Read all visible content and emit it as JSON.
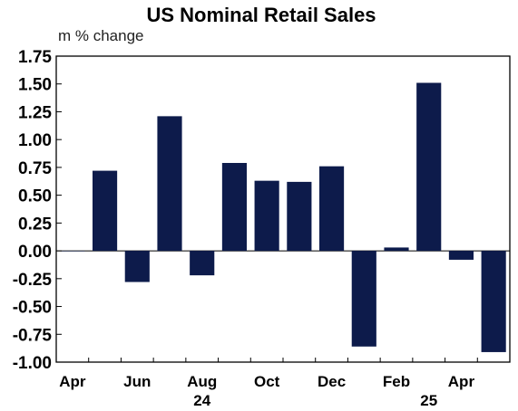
{
  "chart_data": {
    "type": "bar",
    "title": "US Nominal Retail Sales",
    "ylabel": "m % change",
    "xlabel": "",
    "ylim": [
      -1.0,
      1.75
    ],
    "yticks": [
      "1.75",
      "1.50",
      "1.25",
      "1.00",
      "0.75",
      "0.50",
      "0.25",
      "0.00",
      "-0.25",
      "-0.50",
      "-0.75",
      "-1.00"
    ],
    "categories": [
      "Apr 2024",
      "May 2024",
      "Jun 2024",
      "Jul 2024",
      "Aug 2024",
      "Sep 2024",
      "Oct 2024",
      "Nov 2024",
      "Dec 2024",
      "Jan 2025",
      "Feb 2025",
      "Mar 2025",
      "Apr 2025",
      "May 2025"
    ],
    "values": [
      0.0,
      0.72,
      -0.28,
      1.21,
      -0.22,
      0.79,
      0.63,
      0.62,
      0.76,
      -0.86,
      0.03,
      1.51,
      -0.08,
      -0.91
    ],
    "xtick_labels": [
      {
        "label": "Apr",
        "index": 0
      },
      {
        "label": "Jun",
        "index": 2
      },
      {
        "label": "Aug",
        "index": 4
      },
      {
        "label": "Oct",
        "index": 6
      },
      {
        "label": "Dec",
        "index": 8
      },
      {
        "label": "Feb",
        "index": 10
      },
      {
        "label": "Apr",
        "index": 12
      }
    ],
    "year_labels": [
      {
        "label": "24",
        "index": 4
      },
      {
        "label": "25",
        "index": 11
      }
    ],
    "bar_color": "#0d1b4b",
    "grid": false,
    "legend": "none"
  }
}
